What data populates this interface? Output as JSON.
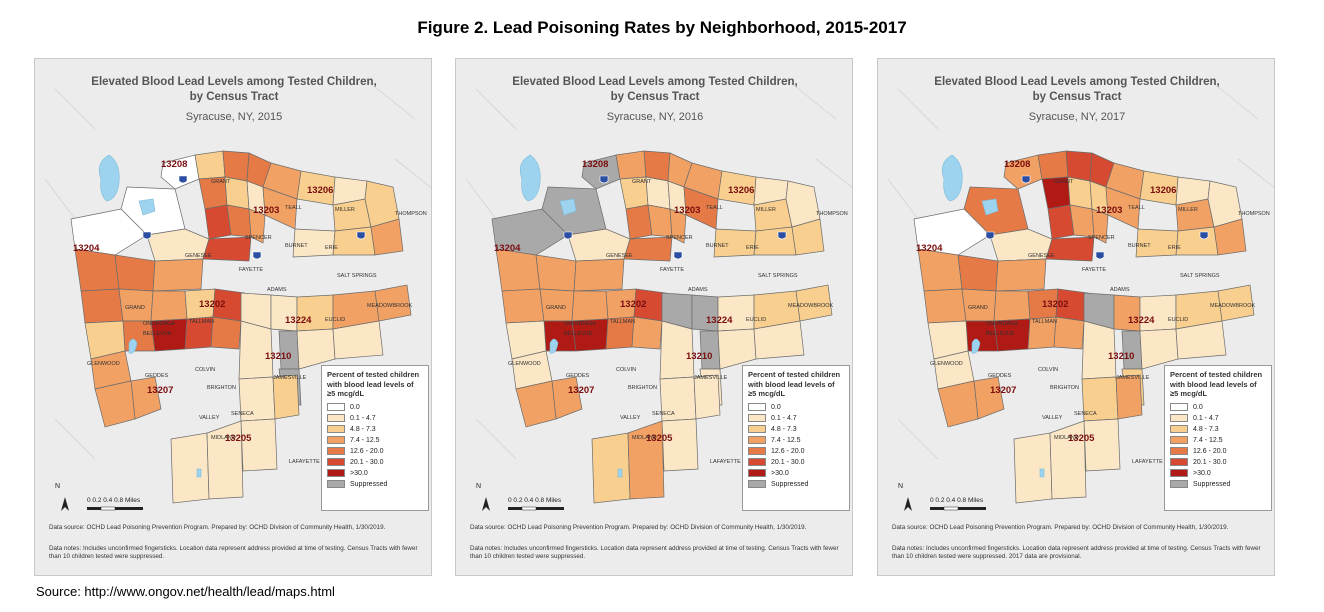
{
  "figure_title": "Figure 2. Lead Poisoning Rates by Neighborhood, 2015-2017",
  "source": "Source: http://www.ongov.net/health/lead/maps.html",
  "legend_title": "Percent of tested children with blood lead levels of ≥5 mcg/dL",
  "legend_classes": [
    {
      "label": "0.0",
      "color": "#ffffff"
    },
    {
      "label": "0.1 - 4.7",
      "color": "#fbe7c6"
    },
    {
      "label": "4.8 - 7.3",
      "color": "#f8cf8e"
    },
    {
      "label": "7.4 - 12.5",
      "color": "#f2a164"
    },
    {
      "label": "12.6 - 20.0",
      "color": "#e57a47"
    },
    {
      "label": "20.1 - 30.0",
      "color": "#d64a31"
    },
    {
      "label": ">30.0",
      "color": "#b01a15"
    },
    {
      "label": "Suppressed",
      "color": "#a9a9a9"
    }
  ],
  "scale_text": "0  0.2 0.4      0.8 Miles",
  "north_label": "N",
  "zip_labels": [
    "13208",
    "13206",
    "13203",
    "13204",
    "13202",
    "13224",
    "13210",
    "13207",
    "13205"
  ],
  "street_labels": [
    "GRANT",
    "THOMPSON",
    "SPENCER",
    "GENESEE",
    "FAYETTE",
    "SALT SPRINGS",
    "ERIE",
    "BURNET",
    "ADAMS",
    "MEADOWBROOK",
    "EUCLID",
    "GRAND",
    "ONONDAGA",
    "BELLEVUE",
    "TALLMAN",
    "GLENWOOD",
    "GEDDES",
    "COLVIN",
    "BRIGHTON",
    "SENECA",
    "LAFAYETTE",
    "JAMESVILLE",
    "VALLEY",
    "MIDLAND",
    "MILLER",
    "TEALL"
  ],
  "maps": [
    {
      "title_line1": "Elevated Blood Lead Levels among Tested Children,",
      "title_line2": "by Census Tract",
      "subtitle": "Syracuse, NY, 2015",
      "source_note": "Data source: OCHD Lead Poisoning Prevention Program. Prepared by: OCHD Division of Community Health, 1/30/2019.",
      "data_note": "Data notes: Includes unconfirmed fingersticks. Location data represent address provided at time of testing. Census Tracts with fewer than 10 children tested were suppressed.",
      "tract_classes": [
        0,
        2,
        4,
        4,
        3,
        4,
        2,
        1,
        5,
        4,
        0,
        2,
        3,
        2,
        1,
        3,
        1,
        2,
        3,
        2,
        0,
        1,
        4,
        4,
        3,
        5,
        4,
        3,
        3,
        2,
        5,
        4,
        6,
        5,
        4,
        1,
        1,
        2,
        3,
        3,
        7,
        7,
        2,
        3,
        1,
        1,
        1,
        1,
        1,
        3,
        3,
        2,
        1,
        1
      ]
    },
    {
      "title_line1": "Elevated Blood Lead Levels among Tested Children,",
      "title_line2": "by Census Tract",
      "subtitle": "Syracuse, NY, 2016",
      "source_note": "Data source: OCHD Lead Poisoning Prevention Program. Prepared by: OCHD Division of Community Health, 1/30/2019.",
      "data_note": "Data notes: Includes unconfirmed fingersticks. Location data represent address provided at time of testing. Census Tracts with fewer than 10 children tested were suppressed.",
      "tract_classes": [
        7,
        3,
        4,
        3,
        3,
        2,
        1,
        1,
        4,
        3,
        7,
        2,
        4,
        2,
        1,
        3,
        2,
        2,
        2,
        1,
        7,
        1,
        3,
        3,
        3,
        4,
        3,
        3,
        3,
        3,
        5,
        6,
        6,
        4,
        3,
        7,
        7,
        1,
        2,
        2,
        7,
        1,
        1,
        1,
        1,
        1,
        1,
        2,
        3,
        3,
        3,
        1,
        1,
        1
      ]
    },
    {
      "title_line1": "Elevated Blood Lead Levels among Tested Children,",
      "title_line2": "by Census Tract",
      "subtitle": "Syracuse, NY, 2017",
      "source_note": "Data source: OCHD Lead Poisoning Prevention Program. Prepared by: OCHD Division of Community Health, 1/30/2019.",
      "data_note": "Data notes: Includes unconfirmed fingersticks. Location data represent address provided at time of testing. Census Tracts with fewer than 10 children tested were suppressed. 2017 data are provisional.",
      "tract_classes": [
        3,
        4,
        5,
        5,
        3,
        6,
        2,
        2,
        5,
        3,
        4,
        2,
        3,
        3,
        1,
        3,
        2,
        2,
        3,
        1,
        0,
        1,
        3,
        4,
        3,
        5,
        3,
        3,
        3,
        4,
        5,
        6,
        6,
        3,
        3,
        7,
        3,
        1,
        2,
        2,
        7,
        2,
        1,
        1,
        1,
        2,
        1,
        1,
        1,
        3,
        3,
        3,
        1,
        1
      ]
    }
  ]
}
